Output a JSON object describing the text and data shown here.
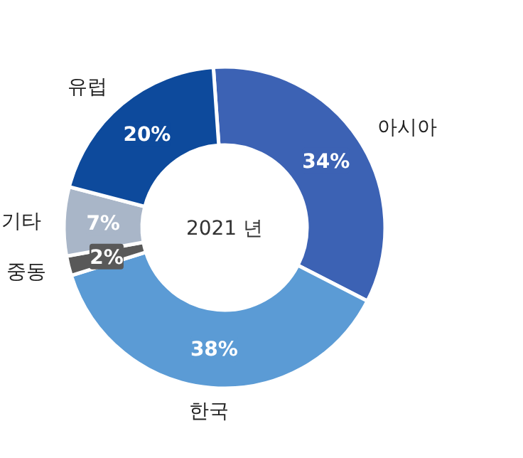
{
  "chart_data": {
    "type": "donut",
    "title": "2021 년",
    "categories": [
      "아시아",
      "한국",
      "중동",
      "기타",
      "유럽"
    ],
    "values": [
      34,
      38,
      2,
      7,
      20
    ],
    "value_labels": [
      "34%",
      "38%",
      "2%",
      "7%",
      "20%"
    ],
    "colors": [
      "#3c62b4",
      "#5b9bd5",
      "#595959",
      "#a9b6c8",
      "#0d4a9c"
    ]
  }
}
